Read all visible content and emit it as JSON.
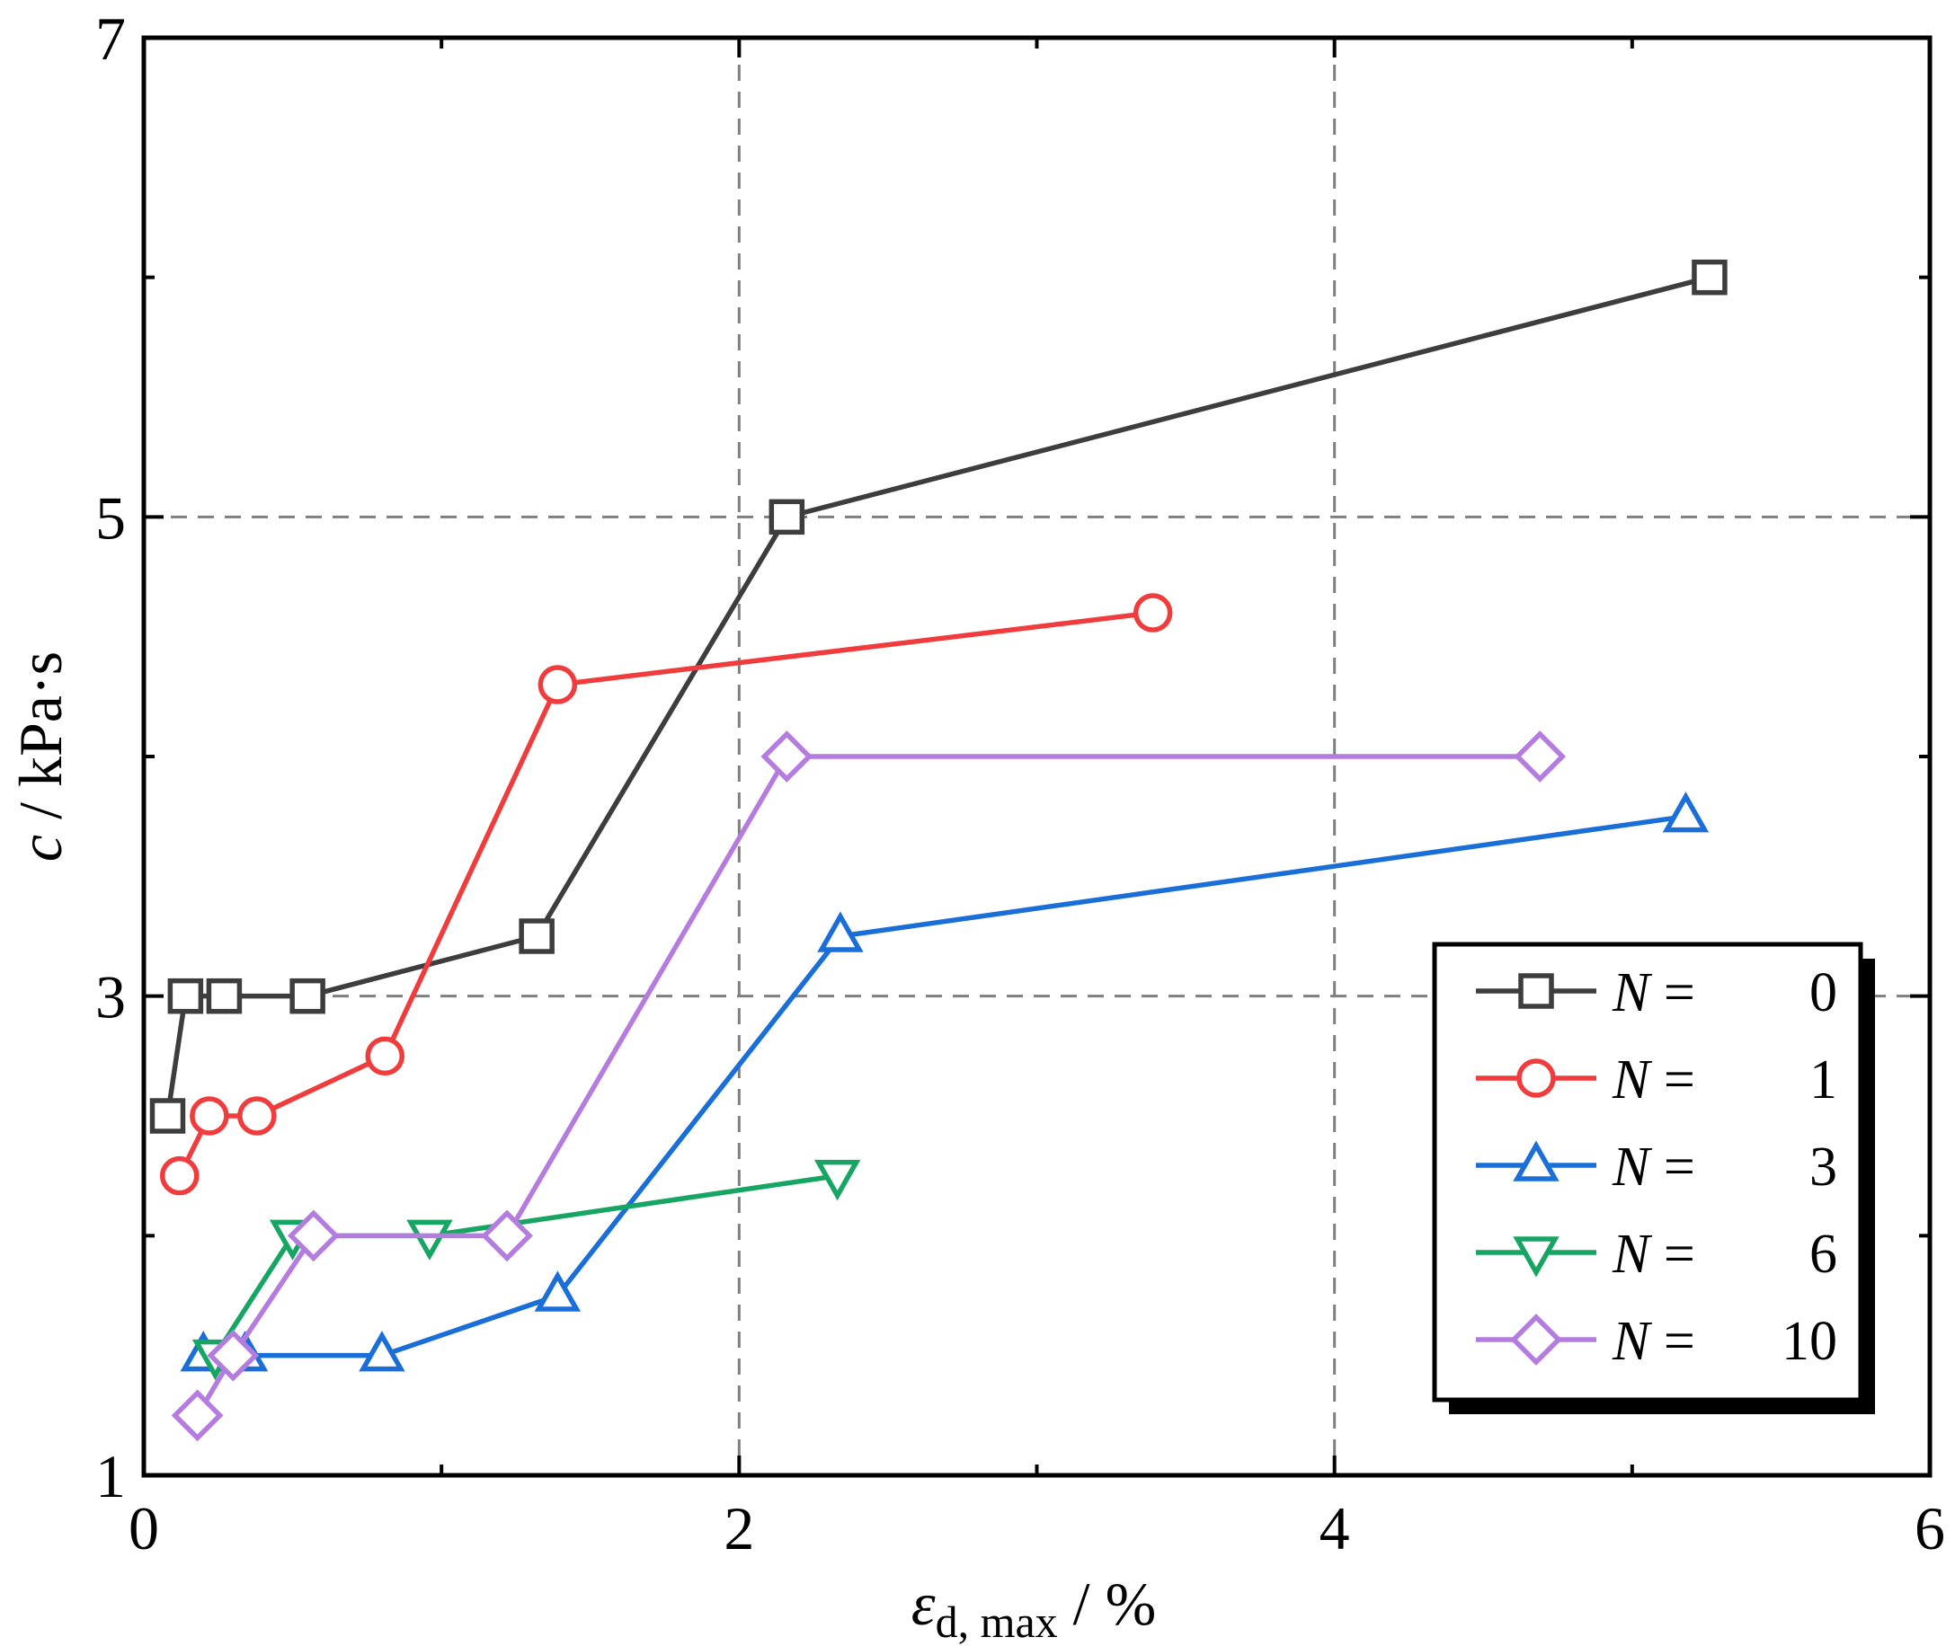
{
  "chart_data": {
    "type": "line",
    "title": "",
    "xlabel": {
      "symbol": "ε",
      "subscript": "d, max",
      "unit": " / %"
    },
    "ylabel": {
      "symbol": "c",
      "unit": " / kPa·s"
    },
    "xlim": [
      0,
      6
    ],
    "ylim": [
      1,
      7
    ],
    "xticks": [
      0,
      2,
      4,
      6
    ],
    "yticks": [
      1,
      3,
      5,
      7
    ],
    "x_minor_ticks": [
      1,
      3,
      5
    ],
    "y_minor_ticks": [
      2,
      4,
      6
    ],
    "grid": {
      "x": [
        2,
        4
      ],
      "y": [
        3,
        5
      ],
      "style": "dashed",
      "color": "#7f7f7f"
    },
    "legend_position": "right-middle",
    "series": [
      {
        "name": "0",
        "label_prefix": "N =",
        "color": "#3d3d3d",
        "marker": "square",
        "x": [
          0.08,
          0.14,
          0.27,
          0.55,
          1.32,
          2.16,
          5.26
        ],
        "y": [
          2.5,
          3.0,
          3.0,
          3.0,
          3.25,
          5.0,
          6.0
        ]
      },
      {
        "name": "1",
        "label_prefix": "N =",
        "color": "#f03c3c",
        "marker": "circle",
        "x": [
          0.12,
          0.22,
          0.38,
          0.81,
          1.39,
          3.39
        ],
        "y": [
          2.25,
          2.5,
          2.5,
          2.75,
          4.3,
          4.6
        ]
      },
      {
        "name": "3",
        "label_prefix": "N =",
        "color": "#1a6ed8",
        "marker": "triangle-up",
        "x": [
          0.2,
          0.34,
          0.8,
          1.39,
          2.34,
          5.18
        ],
        "y": [
          1.5,
          1.5,
          1.5,
          1.75,
          3.25,
          3.75
        ]
      },
      {
        "name": "6",
        "label_prefix": "N =",
        "color": "#16a562",
        "marker": "triangle-down",
        "x": [
          0.24,
          0.5,
          0.96,
          2.33
        ],
        "y": [
          1.5,
          2.0,
          2.0,
          2.25
        ]
      },
      {
        "name": "10",
        "label_prefix": "N =",
        "color": "#b57ce0",
        "marker": "diamond",
        "x": [
          0.18,
          0.3,
          0.57,
          1.22,
          2.16,
          4.69
        ],
        "y": [
          1.25,
          1.5,
          2.0,
          2.0,
          4.0,
          4.0
        ]
      }
    ]
  }
}
